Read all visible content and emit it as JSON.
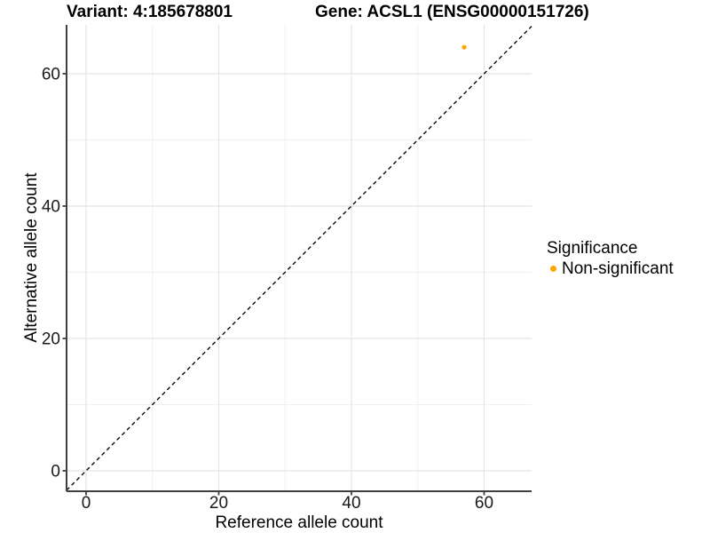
{
  "chart_data": {
    "type": "scatter",
    "title_left": "Variant: 4:185678801",
    "title_right": "Gene: ACSL1 (ENSG00000151726)",
    "xlabel": "Reference allele count",
    "ylabel": "Alternative allele count",
    "xlim": [
      -2.94,
      67.16
    ],
    "ylim": [
      -3.09,
      67.38
    ],
    "xticks": [
      0,
      20,
      40,
      60
    ],
    "yticks": [
      0,
      20,
      40,
      60
    ],
    "xticks_minor": [
      10,
      30,
      50
    ],
    "yticks_minor": [
      10,
      30,
      50
    ],
    "grid": "major+minor on white background",
    "reference_line": {
      "type": "identity y=x",
      "style": "dashed",
      "color": "#0A0A0A"
    },
    "series": [
      {
        "name": "Non-significant",
        "color": "#FFA500",
        "point_radius": 2.6,
        "points": [
          {
            "x": 57,
            "y": 64
          }
        ]
      }
    ],
    "legend": {
      "position": "right",
      "title": "Significance",
      "entries": [
        {
          "label": "Non-significant",
          "color": "#FFA500"
        }
      ]
    }
  },
  "colors": {
    "background": "#FFFFFF",
    "axis_line": "#3F3F3F",
    "tick_mark": "#3F3F3F",
    "tick_label": "#1A1A1A",
    "grid_major": "#E4E4E4",
    "grid_minor": "#F1F1F1"
  }
}
